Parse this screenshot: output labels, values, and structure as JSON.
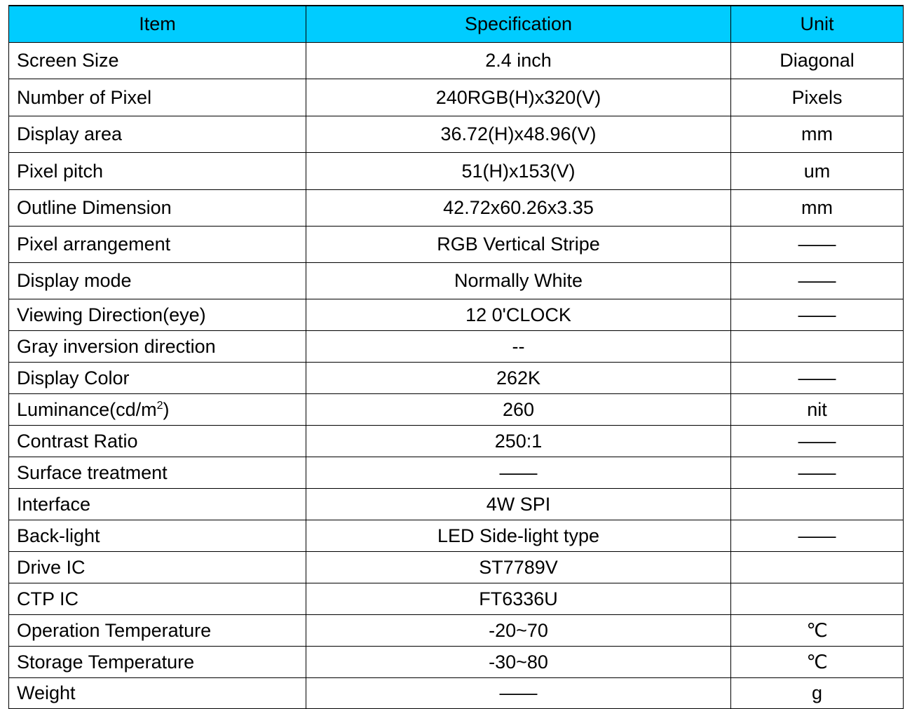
{
  "header": {
    "item": "Item",
    "specification": "Specification",
    "unit": "Unit"
  },
  "rows": [
    {
      "item": "Screen Size",
      "spec": "2.4 inch",
      "unit": "Diagonal"
    },
    {
      "item": "Number of Pixel",
      "spec": "240RGB(H)x320(V)",
      "unit": "Pixels"
    },
    {
      "item": "Display area",
      "spec": "36.72(H)x48.96(V)",
      "unit": "mm"
    },
    {
      "item": "Pixel pitch",
      "spec": "51(H)x153(V)",
      "unit": "um"
    },
    {
      "item": "Outline Dimension",
      "spec": "42.72x60.26x3.35",
      "unit": "mm"
    },
    {
      "item": "Pixel arrangement",
      "spec": "RGB Vertical Stripe",
      "unit": "——"
    },
    {
      "item": "Display mode",
      "spec": "Normally White",
      "unit": "——"
    },
    {
      "item": "Viewing Direction(eye)",
      "spec": "12 0'CLOCK",
      "unit": "——"
    },
    {
      "item": "Gray inversion direction",
      "spec": "--",
      "unit": ""
    },
    {
      "item": "Display Color",
      "spec": "262K",
      "unit": "——"
    },
    {
      "item": "Luminance(cd/m",
      "item_sup": "2",
      "item_suffix": ")",
      "spec": "260",
      "unit": "nit"
    },
    {
      "item": "Contrast Ratio",
      "spec": "250:1",
      "unit": "——"
    },
    {
      "item": "Surface treatment",
      "spec": "——",
      "unit": "——"
    },
    {
      "item": "Interface",
      "spec": "4W SPI",
      "unit": ""
    },
    {
      "item": "Back-light",
      "spec": "LED Side-light type",
      "unit": "——"
    },
    {
      "item": "Drive IC",
      "spec": "ST7789V",
      "unit": ""
    },
    {
      "item": "CTP IC",
      "spec": "FT6336U",
      "unit": ""
    },
    {
      "item": "Operation Temperature",
      "spec": "-20~70",
      "unit": "℃"
    },
    {
      "item": "Storage Temperature",
      "spec": "-30~80",
      "unit": "℃"
    },
    {
      "item": "Weight",
      "spec": "——",
      "unit": "g"
    }
  ],
  "colors": {
    "header_background": "#00ccff",
    "border": "#000000"
  }
}
